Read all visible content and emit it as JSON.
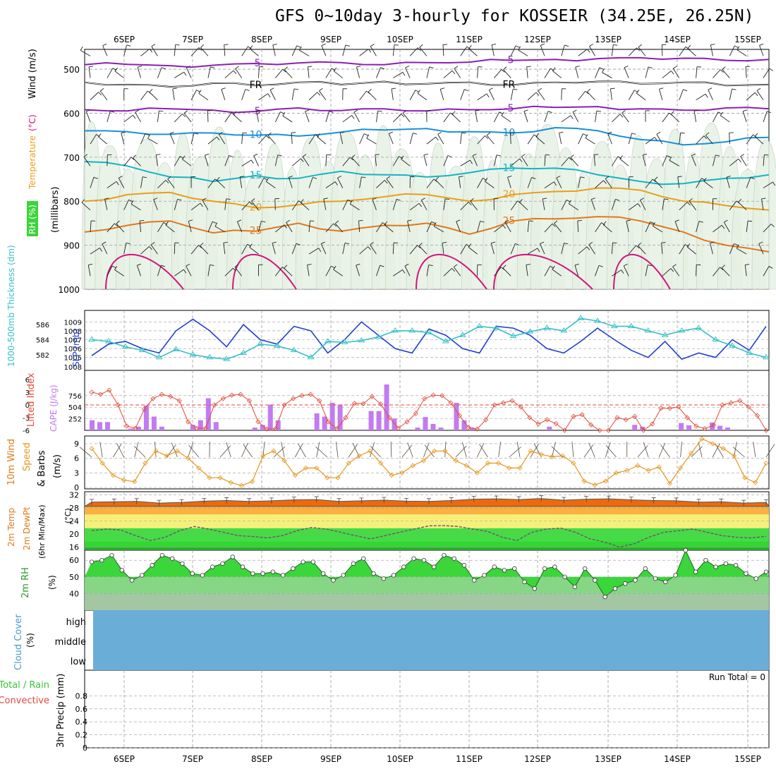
{
  "title": "GFS 0~10day 3-hourly for KOSSEIR (34.25E, 26.25N)",
  "colors": {
    "purple": "#8b1fb5",
    "black": "#000000",
    "blue_line": "#1a8fdc",
    "cyan_line": "#14b4c4",
    "orange_line": "#e89f1a",
    "dorange_line": "#e0791a",
    "magenta": "#d4147a",
    "rh_fill": "#e6f1e4",
    "rh_dark": "#b7cbb4",
    "slp": "#1f3fcf",
    "thick": "#36c0c8",
    "lifted": "#e04a3a",
    "cape": "#c27bf0",
    "wind": "#e5961a",
    "temp_dark": "#ed6a0c",
    "temp_mid": "#fbb040",
    "temp_yellow": "#f6f07a",
    "temp_green": "#33d633",
    "rh_green": "#3ad63a",
    "rh_lgreen": "#86d686",
    "rh_gray": "#a3c7a3",
    "cloud": "#6aaed8",
    "grid": "#9a9a9a"
  },
  "chart_data": [
    {
      "type": "area",
      "name": "upper_air",
      "title": "GFS 0~10day 3-hourly for KOSSEIR (34.25E, 26.25N)",
      "x_labels": [
        "6SEP",
        "7SEP",
        "8SEP",
        "9SEP",
        "10SEP",
        "11SEP",
        "12SEP",
        "13SEP",
        "14SEP",
        "15SEP"
      ],
      "ylabel": "(millibars)",
      "side_labels": [
        "RH (%)",
        "Temperature (°C)",
        "Wind (m/s)"
      ],
      "y_ticks": [
        500,
        600,
        700,
        800,
        900,
        1000
      ],
      "ylim": [
        455,
        1000
      ],
      "contours": [
        {
          "label": "-5",
          "color": "purple",
          "values": [
            490,
            489,
            492,
            491,
            487,
            486,
            485,
            490,
            485,
            484,
            480,
            478,
            476,
            474,
            475,
            480,
            478
          ]
        },
        {
          "label": "FR",
          "color": "black",
          "values": [
            530,
            535,
            540,
            532,
            537,
            530,
            535,
            528,
            533,
            530,
            536,
            530,
            528,
            533,
            530,
            537,
            535
          ]
        },
        {
          "label": "-5",
          "color": "purple",
          "values": [
            592,
            595,
            590,
            593,
            596,
            588,
            594,
            590,
            595,
            592,
            590,
            587,
            585,
            590,
            593,
            588,
            590
          ]
        },
        {
          "label": "10",
          "color": "blue_line",
          "values": [
            640,
            642,
            648,
            645,
            650,
            652,
            643,
            638,
            635,
            642,
            645,
            633,
            640,
            660,
            672,
            665,
            655
          ]
        },
        {
          "label": "15",
          "color": "cyan_line",
          "values": [
            710,
            720,
            745,
            755,
            742,
            748,
            732,
            740,
            745,
            735,
            725,
            725,
            740,
            755,
            760,
            748,
            740
          ]
        },
        {
          "label": "20",
          "color": "orange_line",
          "values": [
            800,
            785,
            780,
            800,
            815,
            808,
            800,
            790,
            785,
            800,
            785,
            778,
            770,
            775,
            800,
            810,
            820
          ]
        },
        {
          "label": "25",
          "color": "dorange_line",
          "values": [
            870,
            855,
            845,
            872,
            868,
            850,
            868,
            855,
            850,
            875,
            845,
            840,
            835,
            845,
            870,
            900,
            915
          ]
        }
      ],
      "contour_labels": [
        "-5",
        "FR",
        "-5",
        "10",
        "15",
        "20",
        "25"
      ]
    },
    {
      "type": "line",
      "name": "slp_thickness",
      "ylabel_left": "1000-500mb Thickness (dm)",
      "ylabel_right": "SLP (mb)",
      "y_ticks_left": [
        582,
        584,
        586
      ],
      "y_ticks_right": [
        1005,
        1006,
        1007,
        1008,
        1009
      ],
      "ylim": [
        1004.5,
        1009.5
      ],
      "series": [
        {
          "name": "SLP",
          "color": "slp",
          "values": [
            1005.2,
            1006.5,
            1006.8,
            1006.0,
            1005.5,
            1008.0,
            1009.3,
            1008.0,
            1006.2,
            1008.7,
            1007.0,
            1006.5,
            1008.5,
            1008.0,
            1005.5,
            1007.0,
            1009.0,
            1007.5,
            1006.0,
            1005.5,
            1008.2,
            1007.5,
            1006.0,
            1005.5,
            1008.5,
            1008.3,
            1007.5,
            1006.0,
            1005.5,
            1006.8,
            1008.3,
            1007.0,
            1005.8,
            1005.0,
            1006.8,
            1004.8,
            1005.5,
            1005.0,
            1007.0,
            1005.8,
            1008.5
          ]
        },
        {
          "name": "Thickness",
          "color": "thick",
          "values": [
            1007.0,
            1006.8,
            1006.2,
            1005.8,
            1005.0,
            1005.9,
            1005.3,
            1005.0,
            1004.8,
            1005.5,
            1006.5,
            1006.3,
            1005.8,
            1005.0,
            1006.8,
            1006.7,
            1006.9,
            1007.3,
            1008.0,
            1008.0,
            1007.8,
            1006.8,
            1007.5,
            1008.5,
            1008.3,
            1007.4,
            1007.9,
            1008.3,
            1008.0,
            1009.4,
            1009.1,
            1008.5,
            1008.5,
            1008.0,
            1007.5,
            1008.0,
            1008.3,
            1007.0,
            1006.3,
            1005.5,
            1005.0
          ]
        }
      ]
    },
    {
      "type": "bar",
      "name": "cape_lifted",
      "ylabel_left": "Lifted Index",
      "ylabel_right": "CAPE (J/kg)",
      "y_ticks_left": [
        -6,
        -3,
        0,
        3,
        6
      ],
      "y_ticks_right": [
        252,
        504,
        756
      ],
      "cape_values": [
        220,
        180,
        180,
        0,
        0,
        40,
        80,
        540,
        300,
        80,
        0,
        0,
        0,
        120,
        220,
        700,
        180,
        0,
        0,
        0,
        0,
        60,
        120,
        560,
        220,
        0,
        0,
        0,
        0,
        370,
        300,
        600,
        560,
        0,
        0,
        20,
        420,
        420,
        1000,
        260,
        0,
        0,
        60,
        290,
        140,
        60,
        0,
        600,
        220,
        60,
        0,
        0,
        0,
        0,
        0,
        0,
        0,
        0,
        0,
        80,
        0,
        0,
        0,
        0,
        0,
        0,
        0,
        0,
        0,
        0,
        120,
        80,
        0,
        0,
        0,
        0,
        160,
        110,
        0,
        0,
        170,
        100,
        60,
        0,
        0,
        0,
        0,
        0
      ],
      "lifted_values": [
        -3,
        -2.5,
        -3.5,
        0,
        5,
        5.5,
        1,
        -1.5,
        -2.5,
        -2,
        -1,
        4,
        5.5,
        5.5,
        0,
        -1.5,
        -2.3,
        -2.5,
        -1,
        4,
        5.7,
        5.6,
        0,
        -1.5,
        -2.2,
        -2.5,
        -1,
        4,
        5.6,
        3,
        -0.4,
        -0.3,
        -2,
        -0.2,
        3,
        5.5,
        4,
        2,
        -1.5,
        -2.3,
        -2.2,
        -0.5,
        2.5,
        5.3,
        5.7,
        3.5,
        0,
        -0.5,
        -1,
        0.5,
        3,
        4.5,
        3.5,
        4.4,
        6,
        2.7,
        2.3,
        4.7,
        6,
        6,
        3,
        3.5,
        2.7,
        6,
        4.5,
        0.8,
        0.8,
        0.5,
        3,
        5,
        5.6,
        4.8,
        0,
        -0.5,
        -1,
        0.5,
        2.5,
        6
      ]
    },
    {
      "type": "line",
      "name": "wind10m",
      "ylabel": "10m Wind Speed & Barbs (m/s)",
      "y_ticks": [
        0,
        3,
        6,
        9
      ],
      "ylim": [
        0,
        10
      ],
      "values": [
        8,
        5,
        2.5,
        1.5,
        1.2,
        5,
        7.5,
        6.5,
        7.5,
        6,
        4,
        2,
        2,
        1,
        0.4,
        1.2,
        6.5,
        7.5,
        5.5,
        2.5,
        4,
        4,
        2,
        2,
        5,
        6.5,
        7.5,
        5,
        2.5,
        3,
        4.5,
        5.5,
        7.5,
        7.5,
        5.5,
        4.5,
        3,
        5,
        5,
        4,
        4,
        7.5,
        6.8,
        6.3,
        6.5,
        5,
        1.3,
        0.5,
        1.3,
        3,
        3.5,
        4.5,
        3.5,
        4.2,
        0.8,
        4,
        7,
        10,
        9,
        8,
        6.5,
        2,
        1,
        5
      ]
    },
    {
      "type": "area",
      "name": "temp2m",
      "ylabel": "2m Temp 2m DewPt (6hr Min/Max) (°C)",
      "y_ticks": [
        16,
        20,
        24,
        28,
        32
      ],
      "ylim": [
        15,
        33
      ],
      "temp": [
        29.8,
        29.9,
        30.0,
        29.5,
        29.7,
        30.1,
        30.3,
        30.0,
        30.2,
        30.5,
        30.6,
        30.0,
        30.2,
        30.4,
        30.1,
        30.0,
        30.3,
        30.7,
        30.8,
        30.6,
        30.9,
        30.4,
        30.7,
        30.8,
        30.5,
        30.3,
        30.2,
        29.8,
        29.9,
        29.5,
        29.7
      ],
      "dewpoint": [
        21,
        21.5,
        21.2,
        19.5,
        18,
        19,
        21,
        22.3,
        21.5,
        20.5,
        19.5,
        19.2,
        18.8,
        19.5,
        21,
        22,
        21.5,
        20.5,
        19.5,
        18.5,
        19.5,
        20.5,
        21.5,
        22.5,
        22.6,
        22.3,
        21.5,
        20.8,
        19,
        18,
        20.5,
        21.5,
        21.8,
        20.5,
        18.5,
        17.5,
        16,
        17,
        19,
        20.5,
        21,
        21.5,
        20.5,
        19.5,
        19,
        18.8,
        19.3
      ]
    },
    {
      "type": "area",
      "name": "rh2m",
      "ylabel": "2m RH (%)",
      "y_ticks": [
        40,
        50,
        60
      ],
      "ylim": [
        30,
        66
      ],
      "values": [
        59,
        60,
        63,
        54,
        48,
        51,
        57,
        63,
        61,
        58,
        52,
        51,
        56,
        58,
        62,
        56,
        52,
        52,
        53,
        51,
        55,
        59,
        59,
        52,
        48,
        51,
        58,
        61,
        52,
        49,
        51,
        56,
        61,
        60,
        56,
        63,
        61,
        57,
        48,
        51,
        56,
        54,
        55,
        47,
        43,
        55,
        56,
        50,
        44,
        55,
        48,
        38,
        43,
        46,
        48,
        55,
        49,
        47,
        51,
        66,
        53,
        60,
        56,
        58,
        57,
        52,
        49,
        53
      ]
    },
    {
      "type": "heatmap",
      "name": "cloud",
      "ylabel": "Cloud Cover (%)",
      "rows": [
        "high",
        "middle",
        "low"
      ]
    },
    {
      "type": "bar",
      "name": "precip",
      "ylabel": "3hr Precip (mm)",
      "side_labels": [
        "Total / Rain",
        "Convective"
      ],
      "y_ticks": [
        "0",
        "0.2",
        "0.4",
        "0.6",
        "0.8"
      ],
      "ylim": [
        0,
        1
      ],
      "run_total": "Run Total = 0",
      "values": []
    }
  ],
  "axis": {
    "x_labels": [
      "6SEP",
      "7SEP",
      "8SEP",
      "9SEP",
      "10SEP",
      "11SEP",
      "12SEP",
      "13SEP",
      "14SEP",
      "15SEP"
    ],
    "pressure_labels": [
      "500",
      "600",
      "700",
      "800",
      "900",
      "1000"
    ],
    "thick_ticks": [
      "582",
      "584",
      "586"
    ],
    "slp_ticks": [
      "1005",
      "1006",
      "1007",
      "1008",
      "1009"
    ],
    "cape_ticks": [
      "252",
      "504",
      "756"
    ],
    "lifted_ticks": [
      "6",
      "3",
      "0",
      "-3",
      "-6"
    ],
    "wind_ticks": [
      "0",
      "3",
      "6",
      "9"
    ],
    "temp_ticks": [
      "16",
      "20",
      "24",
      "28",
      "32"
    ],
    "rh_ticks": [
      "40",
      "50",
      "60"
    ],
    "precip_ticks": [
      "0",
      "0.2",
      "0.4",
      "0.6",
      "0.8"
    ]
  },
  "labels": {
    "rh": "RH (%)",
    "temperature": "Temperature",
    "degc": "(°C)",
    "wind": "Wind (m/s)",
    "millibars": "(millibars)",
    "thickness": "1000-500mb Thickness (dm)",
    "slp": "SLP (mb)",
    "lifted": "Lifted Index",
    "cape": "CAPE (J/kg)",
    "wind10": "10m Wind",
    "speed": "Speed",
    "barbs": "& Barbs",
    "ms": "(m/s)",
    "temp2m": "2m Temp",
    "dew2m": "2m DewPt",
    "minmax": "(6hr Min/Max)",
    "rh2m": "2m RH",
    "pct": "(%)",
    "cloud": "Cloud Cover",
    "high": "high",
    "middle": "middle",
    "low": "low",
    "total_rain": "Total / Rain",
    "convective": "Convective",
    "precip": "3hr Precip (mm)",
    "run_total": "Run Total = 0"
  }
}
